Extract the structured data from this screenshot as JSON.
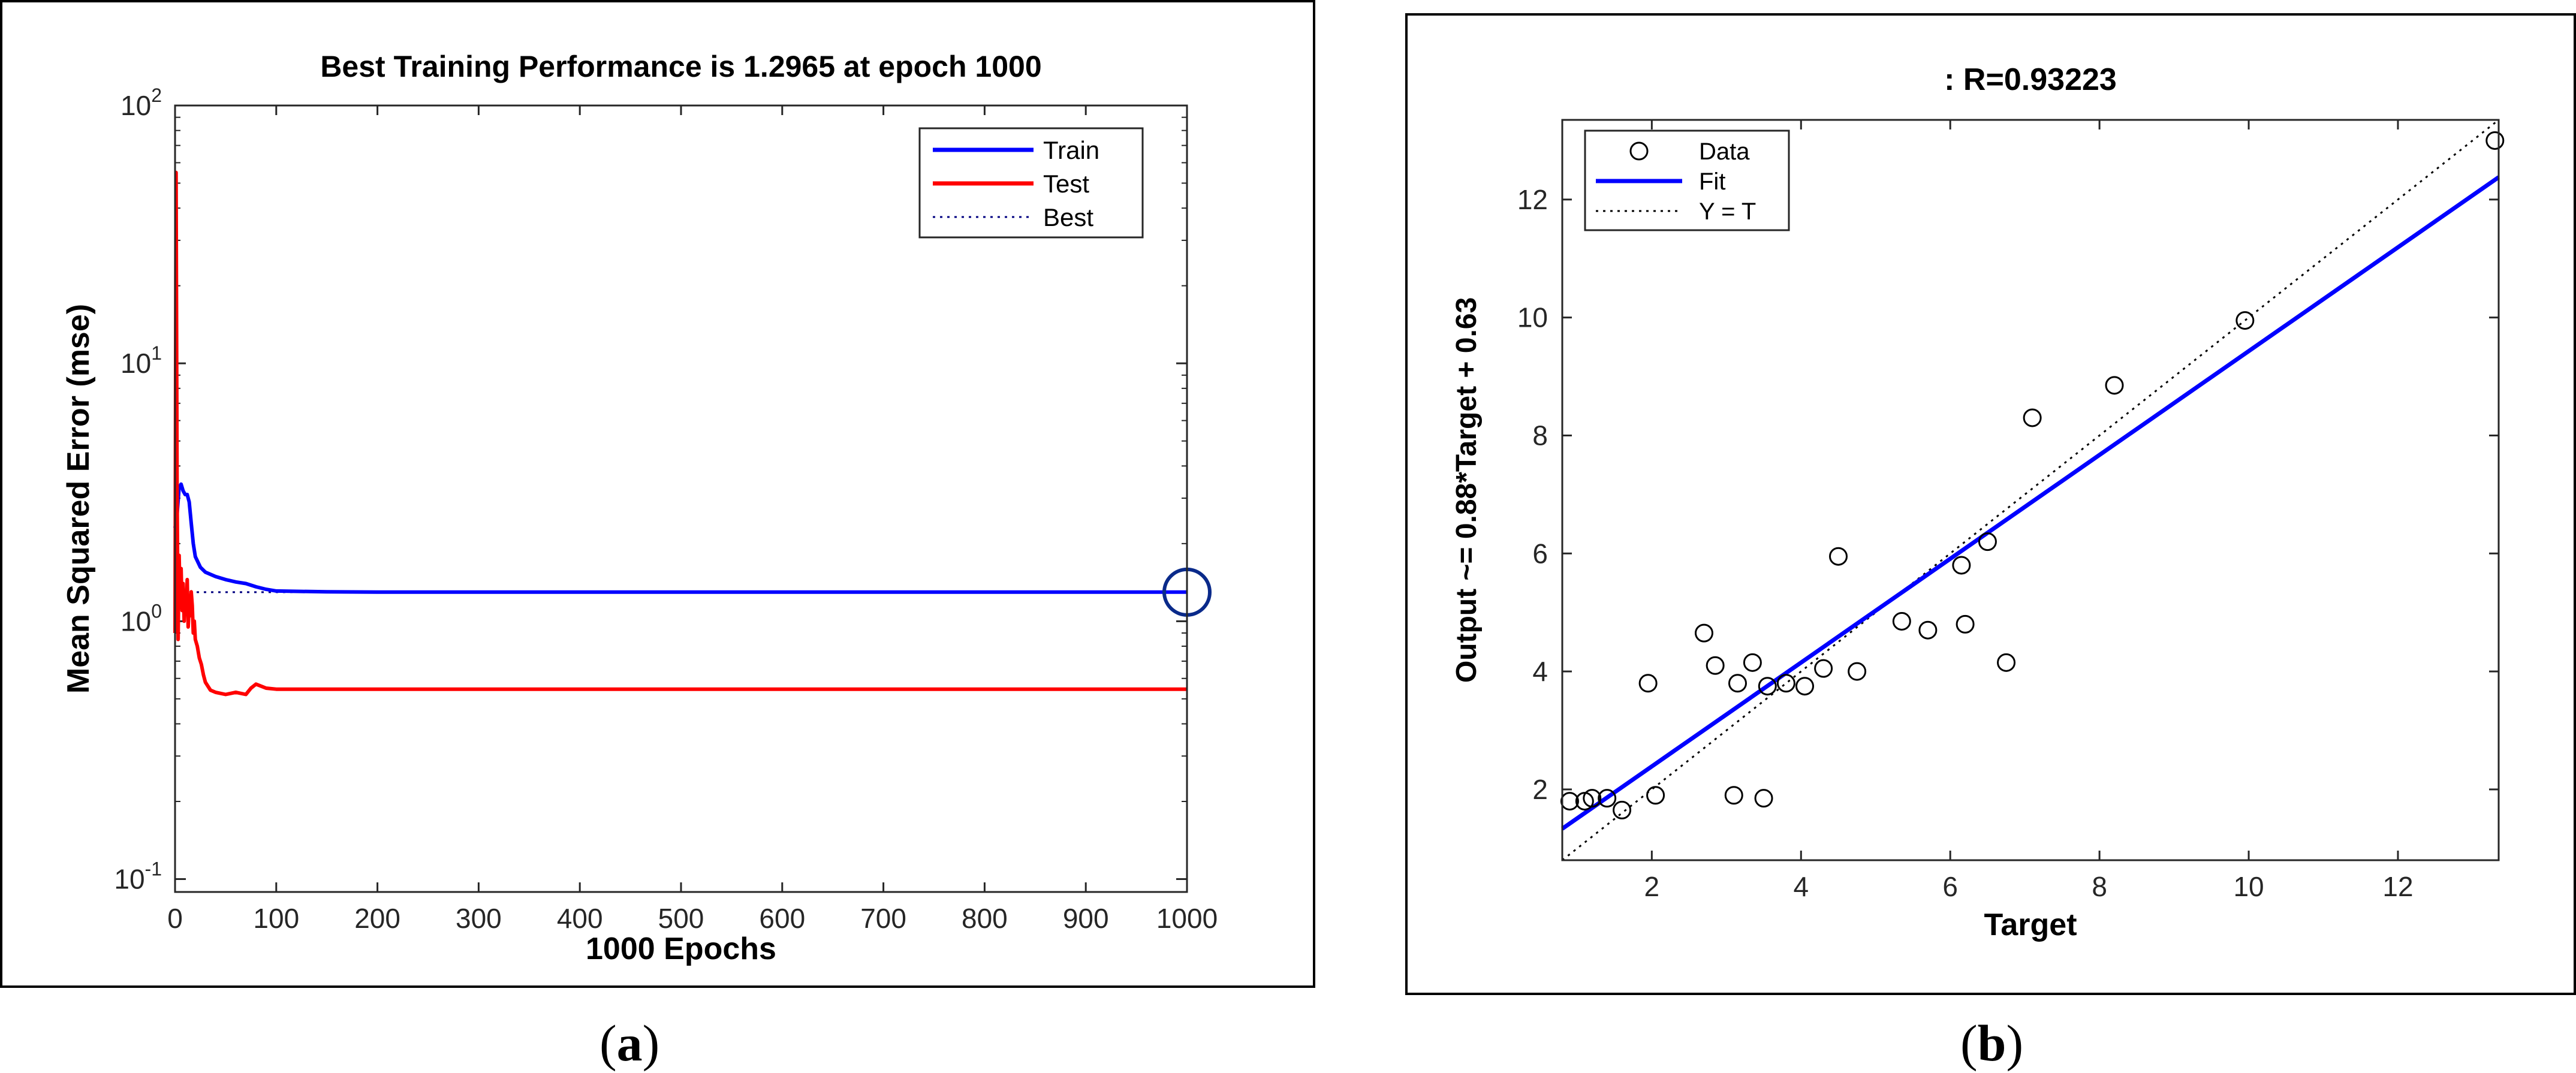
{
  "chart_data": [
    {
      "type": "line",
      "panel_label": "a",
      "title": "Best Training Performance is 1.2965 at epoch 1000",
      "xlabel": "1000 Epochs",
      "ylabel": "Mean Squared Error  (mse)",
      "xlim": [
        0,
        1000
      ],
      "ylim_log10": [
        -1.05,
        2.0
      ],
      "yscale": "log",
      "x_ticks": [
        0,
        100,
        200,
        300,
        400,
        500,
        600,
        700,
        800,
        900,
        1000
      ],
      "x_tick_labels": [
        "0",
        "100",
        "200",
        "300",
        "400",
        "500",
        "600",
        "700",
        "800",
        "900",
        "1000"
      ],
      "y_ticks": [
        0.1,
        1,
        10,
        100
      ],
      "y_tick_labels": [
        {
          "base": "10",
          "exp": "-1"
        },
        {
          "base": "10",
          "exp": "0"
        },
        {
          "base": "10",
          "exp": "1"
        },
        {
          "base": "10",
          "exp": "2"
        }
      ],
      "legend": [
        "Train",
        "Test",
        "Best"
      ],
      "legend_position": "top-right",
      "best_epoch": 1000,
      "best_value": 1.2965,
      "series": [
        {
          "name": "Train",
          "color": "#0000ff",
          "x": [
            0,
            2,
            4,
            6,
            8,
            10,
            12,
            14,
            16,
            18,
            20,
            25,
            30,
            40,
            50,
            60,
            70,
            80,
            90,
            100,
            150,
            200,
            400,
            600,
            800,
            1000
          ],
          "y": [
            2.3,
            2.6,
            3.3,
            3.4,
            3.2,
            3.1,
            3.1,
            2.9,
            2.4,
            2.0,
            1.78,
            1.62,
            1.55,
            1.49,
            1.45,
            1.42,
            1.4,
            1.36,
            1.33,
            1.31,
            1.3,
            1.2965,
            1.2965,
            1.2965,
            1.2965,
            1.2965
          ]
        },
        {
          "name": "Test",
          "color": "#ff0000",
          "x": [
            0,
            1,
            2,
            3,
            4,
            5,
            6,
            7,
            8,
            9,
            10,
            11,
            12,
            13,
            14,
            15,
            16,
            17,
            18,
            19,
            20,
            22,
            24,
            26,
            28,
            30,
            35,
            40,
            50,
            60,
            70,
            75,
            80,
            90,
            100,
            200,
            400,
            600,
            800,
            1000
          ],
          "y": [
            0.9,
            55,
            3.2,
            0.85,
            1.8,
            1.2,
            1.6,
            1.1,
            1.4,
            1.0,
            1.3,
            1.1,
            1.45,
            0.95,
            1.2,
            1.05,
            1.3,
            1.15,
            0.9,
            1.0,
            0.85,
            0.8,
            0.72,
            0.68,
            0.62,
            0.58,
            0.54,
            0.53,
            0.52,
            0.53,
            0.52,
            0.55,
            0.57,
            0.55,
            0.545,
            0.545,
            0.545,
            0.545,
            0.545,
            0.545
          ]
        },
        {
          "name": "Best",
          "color": "#000080",
          "style": "dotted"
        }
      ]
    },
    {
      "type": "scatter",
      "panel_label": "b",
      "title": ": R=0.93223",
      "xlabel": "Target",
      "ylabel": "Output ~= 0.88*Target + 0.63",
      "xlim": [
        0.8,
        13.35
      ],
      "ylim": [
        0.8,
        13.35
      ],
      "x_ticks": [
        2,
        4,
        6,
        8,
        10,
        12
      ],
      "y_ticks": [
        2,
        4,
        6,
        8,
        10,
        12
      ],
      "legend": [
        "Data",
        "Fit",
        "Y = T"
      ],
      "legend_position": "top-left",
      "R": 0.93223,
      "fit": {
        "slope": 0.88,
        "intercept": 0.63,
        "color": "#0000ff"
      },
      "identity_line": {
        "style": "dotted"
      },
      "points": [
        {
          "x": 0.9,
          "y": 1.8
        },
        {
          "x": 1.1,
          "y": 1.8
        },
        {
          "x": 1.2,
          "y": 1.85
        },
        {
          "x": 1.4,
          "y": 1.85
        },
        {
          "x": 1.6,
          "y": 1.65
        },
        {
          "x": 1.95,
          "y": 3.8
        },
        {
          "x": 2.05,
          "y": 1.9
        },
        {
          "x": 2.7,
          "y": 4.65
        },
        {
          "x": 2.85,
          "y": 4.1
        },
        {
          "x": 3.1,
          "y": 1.9
        },
        {
          "x": 3.15,
          "y": 3.8
        },
        {
          "x": 3.35,
          "y": 4.15
        },
        {
          "x": 3.5,
          "y": 1.85
        },
        {
          "x": 3.55,
          "y": 3.75
        },
        {
          "x": 3.8,
          "y": 3.8
        },
        {
          "x": 4.05,
          "y": 3.75
        },
        {
          "x": 4.3,
          "y": 4.05
        },
        {
          "x": 4.5,
          "y": 5.95
        },
        {
          "x": 4.75,
          "y": 4.0
        },
        {
          "x": 5.35,
          "y": 4.85
        },
        {
          "x": 5.7,
          "y": 4.7
        },
        {
          "x": 6.15,
          "y": 5.8
        },
        {
          "x": 6.2,
          "y": 4.8
        },
        {
          "x": 6.5,
          "y": 6.2
        },
        {
          "x": 6.75,
          "y": 4.15
        },
        {
          "x": 7.1,
          "y": 8.3
        },
        {
          "x": 8.2,
          "y": 8.85
        },
        {
          "x": 9.95,
          "y": 9.95
        },
        {
          "x": 13.3,
          "y": 13.0
        }
      ]
    }
  ],
  "captions": {
    "a": "a",
    "b": "b"
  }
}
